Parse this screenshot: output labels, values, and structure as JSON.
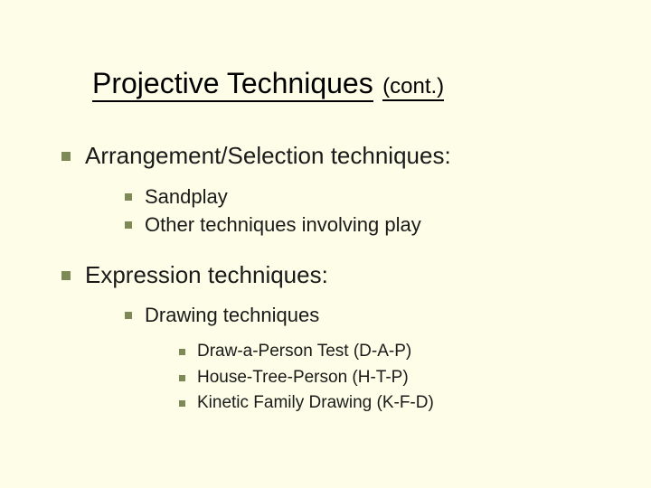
{
  "colors": {
    "background": "#fefee8",
    "text": "#1a1a1a",
    "title_text": "#000000",
    "bullet": "#7d8a57",
    "title_underline": "#000000"
  },
  "typography": {
    "font_family": "Verdana",
    "title_fontsize_pt": 32,
    "title_suffix_fontsize_pt": 24,
    "level1_fontsize_pt": 26,
    "level2_fontsize_pt": 22,
    "level3_fontsize_pt": 19
  },
  "title": {
    "main": "Projective Techniques",
    "suffix": "(cont.)"
  },
  "bullets": [
    {
      "text": "Arrangement/Selection techniques:",
      "children": [
        {
          "text": "Sandplay"
        },
        {
          "text": "Other techniques involving play"
        }
      ]
    },
    {
      "text": "Expression techniques:",
      "children": [
        {
          "text": "Drawing techniques",
          "children": [
            {
              "text": "Draw-a-Person Test (D-A-P)"
            },
            {
              "text": "House-Tree-Person (H-T-P)"
            },
            {
              "text": "Kinetic Family Drawing (K-F-D)"
            }
          ]
        }
      ]
    }
  ]
}
